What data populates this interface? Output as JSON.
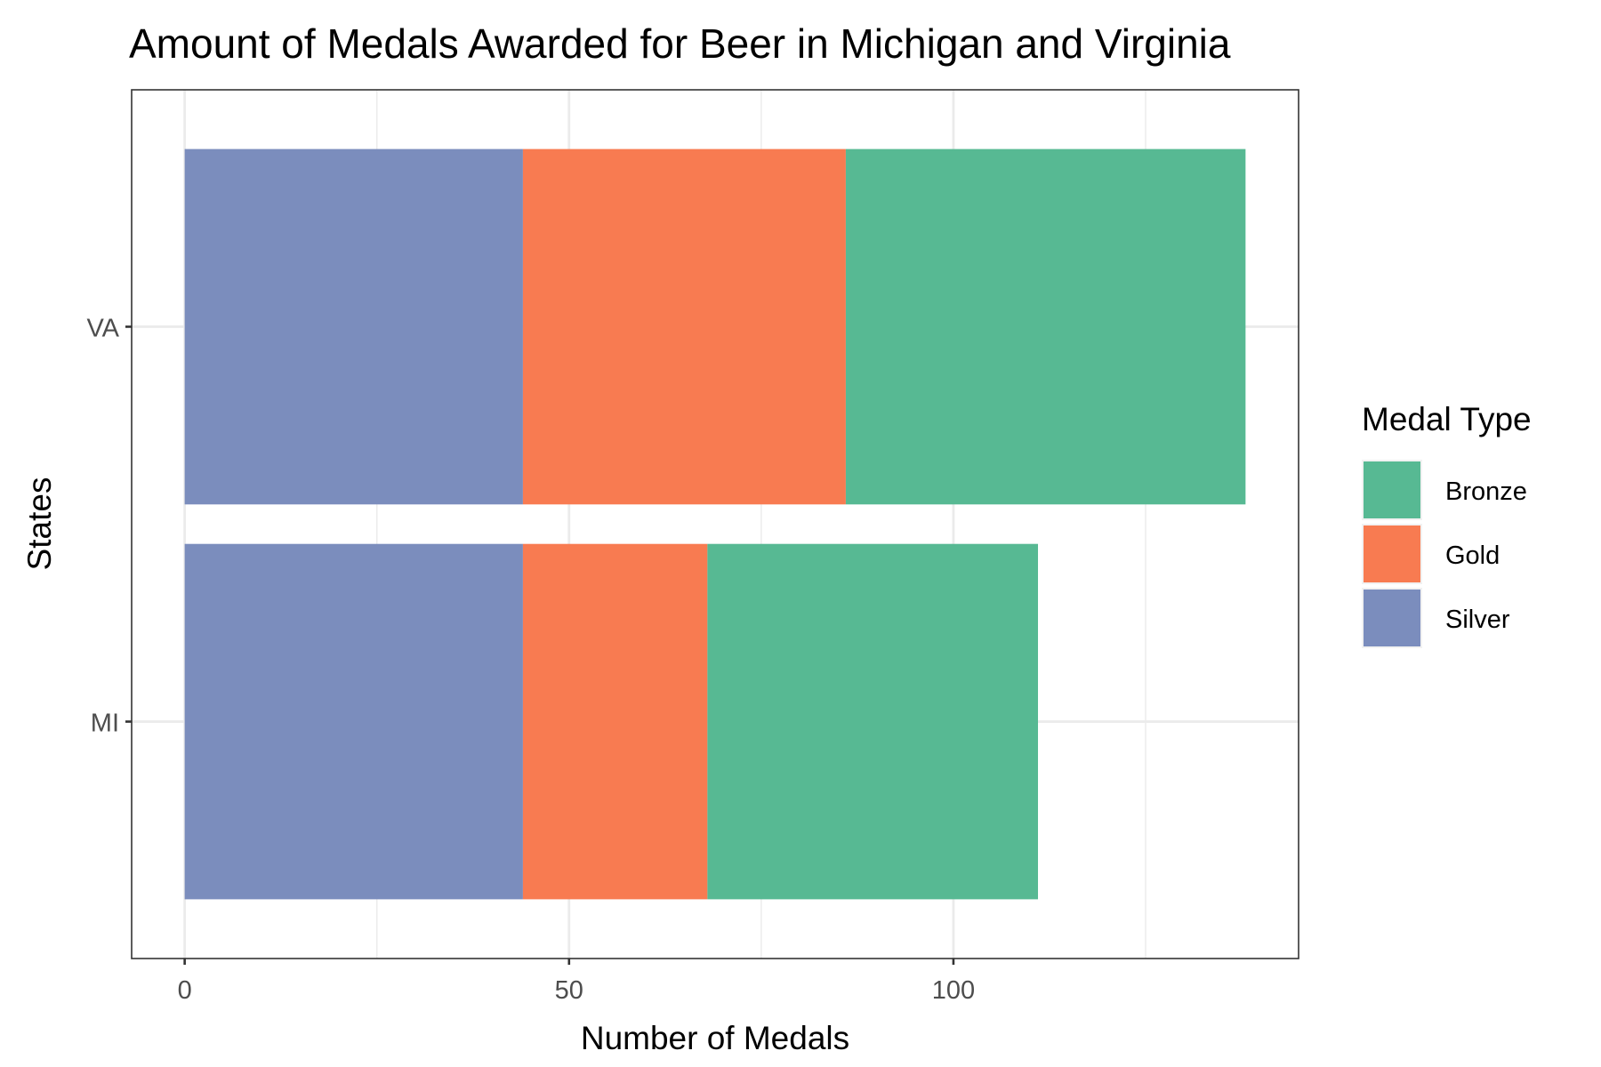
{
  "chart_data": {
    "type": "bar",
    "orientation": "horizontal",
    "stacked": true,
    "title": "Amount of Medals Awarded for Beer in Michigan and Virginia",
    "xlabel": "Number of Medals",
    "ylabel": "States",
    "categories": [
      "MI",
      "VA"
    ],
    "x_ticks": [
      0,
      50,
      100
    ],
    "xlim": [
      -6.9,
      144.9
    ],
    "series": [
      {
        "name": "Silver",
        "color": "#7b8dbd",
        "values": [
          44,
          44
        ]
      },
      {
        "name": "Gold",
        "color": "#f87b51",
        "values": [
          24,
          42
        ]
      },
      {
        "name": "Bronze",
        "color": "#57b993",
        "values": [
          43,
          52
        ]
      }
    ],
    "legend": {
      "title": "Medal Type",
      "position": "right",
      "entries": [
        "Bronze",
        "Gold",
        "Silver"
      ]
    },
    "grid": true
  }
}
